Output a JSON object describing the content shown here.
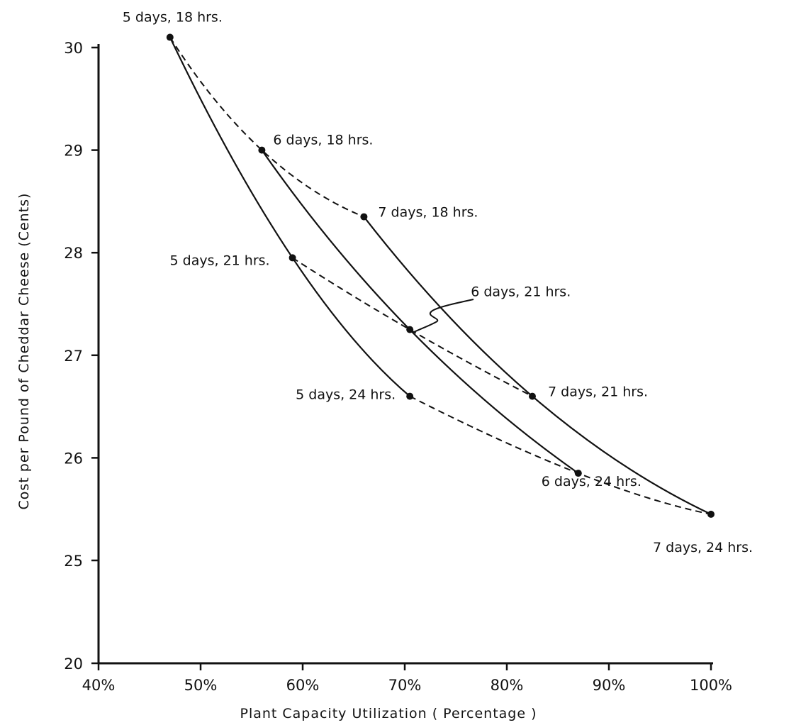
{
  "chart_data": {
    "type": "line",
    "title": "",
    "xlabel": "Plant Capacity Utilization ( Percentage )",
    "ylabel": "Cost per Pound of Cheddar Cheese (Cents)",
    "x_ticks": [
      "40%",
      "50%",
      "60%",
      "70%",
      "80%",
      "90%",
      "100%"
    ],
    "x_tick_values": [
      40,
      50,
      60,
      70,
      80,
      90,
      100
    ],
    "y_ticks": [
      "20",
      "25",
      "26",
      "27",
      "28",
      "29",
      "30"
    ],
    "y_tick_values": [
      20,
      25,
      26,
      27,
      28,
      29,
      30
    ],
    "y_axis_note": "broken axis: 20 then 25-30",
    "xlim": [
      40,
      100
    ],
    "grid": false,
    "legend": "none",
    "points": [
      {
        "label": "5 days, 18 hrs.",
        "x": 47,
        "y": 30.1
      },
      {
        "label": "6 days, 18 hrs.",
        "x": 56,
        "y": 29.0
      },
      {
        "label": "7 days, 18 hrs.",
        "x": 66,
        "y": 28.35
      },
      {
        "label": "5 days, 21 hrs.",
        "x": 59,
        "y": 27.95
      },
      {
        "label": "6 days, 21 hrs.",
        "x": 70.5,
        "y": 27.25
      },
      {
        "label": "7 days, 21 hrs.",
        "x": 82.5,
        "y": 26.6
      },
      {
        "label": "5 days, 24 hrs.",
        "x": 70.5,
        "y": 26.6
      },
      {
        "label": "6 days, 24 hrs.",
        "x": 87,
        "y": 25.85
      },
      {
        "label": "7 days, 24 hrs.",
        "x": 100,
        "y": 25.45
      }
    ],
    "series": [
      {
        "style": "solid",
        "points": [
          0,
          3,
          6
        ]
      },
      {
        "style": "solid",
        "points": [
          1,
          4,
          7
        ]
      },
      {
        "style": "solid",
        "points": [
          2,
          5,
          8
        ]
      },
      {
        "style": "dashed",
        "points": [
          0,
          1,
          2
        ]
      },
      {
        "style": "dashed",
        "points": [
          3,
          4,
          5
        ]
      },
      {
        "style": "dashed",
        "points": [
          6,
          7,
          8
        ]
      }
    ]
  }
}
